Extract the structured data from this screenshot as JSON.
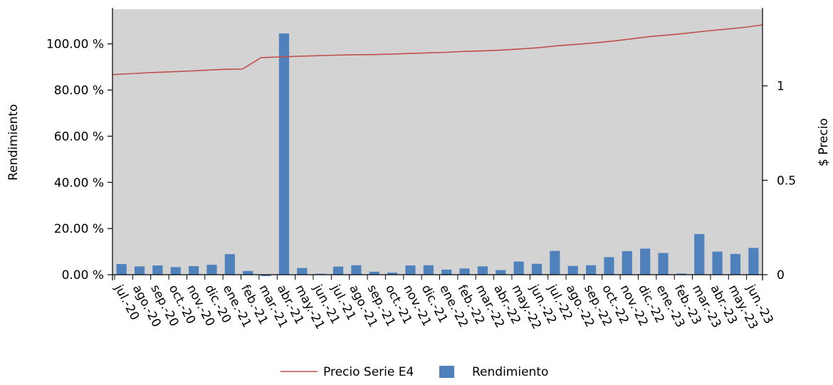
{
  "chart_data": {
    "type": "bar",
    "categories": [
      "jul.-20",
      "ago.-20",
      "sep.-20",
      "oct.-20",
      "nov.-20",
      "dic.-20",
      "ene.-21",
      "feb.-21",
      "mar.-21",
      "abr.-21",
      "may.-21",
      "jun.-21",
      "jul.-21",
      "ago.-21",
      "sep.-21",
      "oct.-21",
      "nov.-21",
      "dic.-21",
      "ene.-22",
      "feb.-22",
      "mar.-22",
      "abr.-22",
      "may.-22",
      "jun.-22",
      "jul.-22",
      "ago.-22",
      "sep.-22",
      "oct.-22",
      "nov.-22",
      "dic.-22",
      "ene.-23",
      "feb.-23",
      "mar.-23",
      "abr.-23",
      "may.-23",
      "jun.-23"
    ],
    "series": [
      {
        "name": "Rendimiento",
        "axis": "left",
        "color": "#4f81bd",
        "values": [
          4.6,
          3.6,
          4.0,
          3.3,
          3.7,
          4.3,
          8.9,
          1.6,
          -0.6,
          104.5,
          2.9,
          0.4,
          3.5,
          4.1,
          1.3,
          0.9,
          4.0,
          4.1,
          2.2,
          2.7,
          3.6,
          2.0,
          5.7,
          4.7,
          10.3,
          3.8,
          4.1,
          7.6,
          10.2,
          11.3,
          9.4,
          0.5,
          17.6,
          10.0,
          9.0,
          11.6
        ]
      },
      {
        "name": "Precio Serie E4",
        "axis": "right",
        "color": "#c0504d",
        "type": "line",
        "values": [
          1.06,
          1.065,
          1.07,
          1.074,
          1.078,
          1.083,
          1.088,
          1.089,
          1.15,
          1.153,
          1.157,
          1.16,
          1.163,
          1.165,
          1.166,
          1.168,
          1.172,
          1.175,
          1.178,
          1.183,
          1.186,
          1.19,
          1.196,
          1.203,
          1.213,
          1.22,
          1.228,
          1.238,
          1.25,
          1.262,
          1.27,
          1.28,
          1.291,
          1.3,
          1.31,
          1.323
        ]
      }
    ],
    "ylabel": "Rendimiento",
    "y2label": "$ Precio",
    "ylim": [
      0,
      115
    ],
    "y2lim": [
      0,
      1.406
    ],
    "yticks": [
      {
        "value": 0,
        "label": "0.00 %"
      },
      {
        "value": 20,
        "label": "20.00 %"
      },
      {
        "value": 40,
        "label": "40.00 %"
      },
      {
        "value": 60,
        "label": "60.00 %"
      },
      {
        "value": 80,
        "label": "80.00 %"
      },
      {
        "value": 100,
        "label": "100.00 %"
      }
    ],
    "y2ticks": [
      {
        "value": 0,
        "label": "0"
      },
      {
        "value": 0.5,
        "label": "0.5"
      },
      {
        "value": 1,
        "label": "1"
      }
    ],
    "grid": false,
    "plot_background": "#d3d3d3",
    "legend": {
      "position": "bottom",
      "entries": [
        "Precio Serie E4",
        "Rendimiento"
      ]
    }
  }
}
